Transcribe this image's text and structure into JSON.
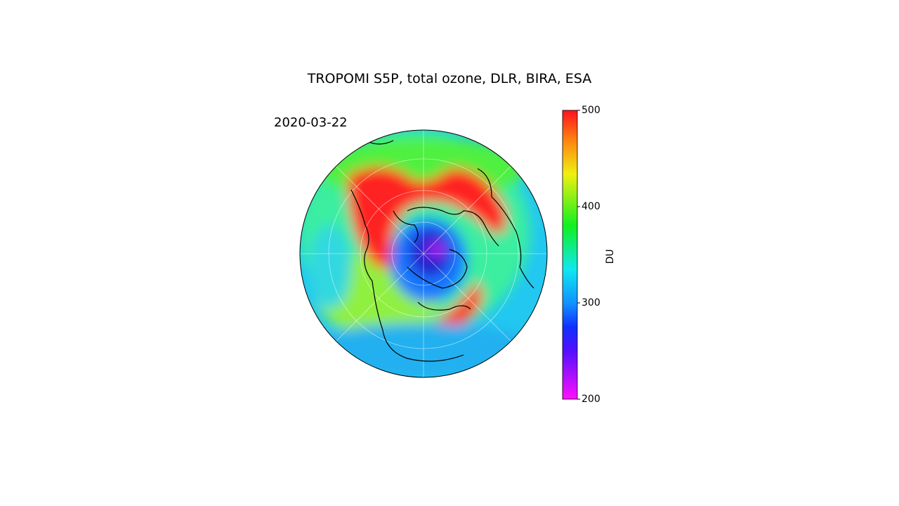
{
  "map": {
    "title": "TROPOMI S5P, total ozone, DLR, BIRA, ESA",
    "date": "2020-03-22",
    "colorbar": {
      "label": "DU",
      "lim": [
        200,
        500
      ],
      "ticks": [
        200,
        300,
        400,
        500
      ]
    }
  }
}
